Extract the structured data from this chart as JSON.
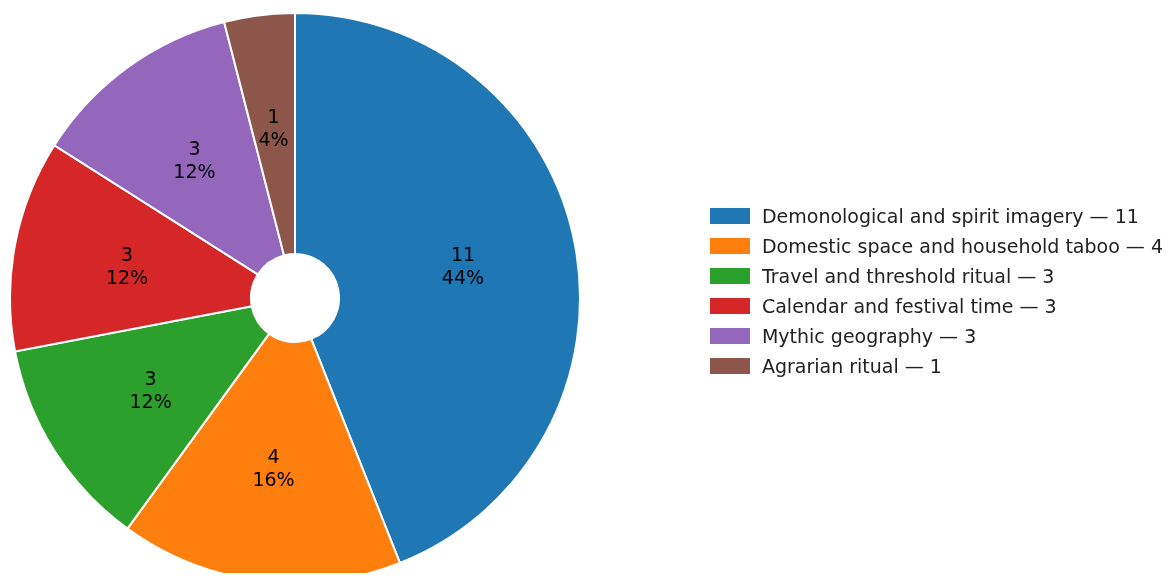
{
  "chart_data": {
    "type": "donut",
    "categories": [
      "Demonological and spirit imagery — 11",
      "Domestic space and household taboo — 4",
      "Travel and threshold ritual — 3",
      "Calendar and festival time — 3",
      "Mythic geography — 3",
      "Agrarian ritual — 1"
    ],
    "values": [
      11,
      4,
      3,
      3,
      3,
      1
    ],
    "colors": [
      "#1f77b4",
      "#ff7f0e",
      "#2ca02c",
      "#d62728",
      "#9467bd",
      "#8c564b"
    ],
    "value_labels": [
      "11\n44%",
      "4\n16%",
      "3\n12%",
      "3\n12%",
      "3\n12%",
      "1\n4%"
    ],
    "legend": "right"
  }
}
